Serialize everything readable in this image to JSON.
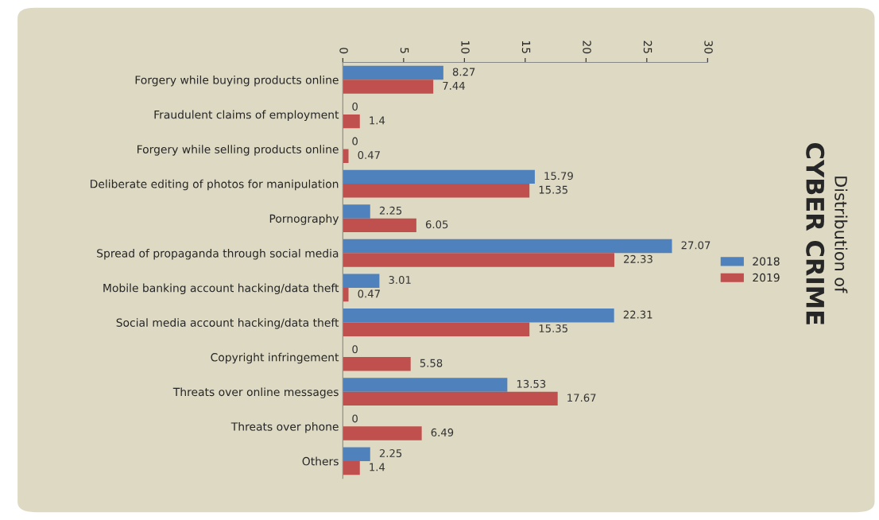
{
  "chart_data": {
    "type": "bar",
    "orientation": "horizontal",
    "title": "Distribution of",
    "subtitle": "CYBER CRIME",
    "categories": [
      "Forgery while buying products online",
      "Fraudulent claims of employment",
      "Forgery while selling products online",
      "Deliberate editing of photos for manipulation",
      "Pornography",
      "Spread of propaganda through social media",
      "Mobile banking account hacking/data theft",
      "Social media account hacking/data theft",
      "Copyright infringement",
      "Threats over online messages",
      "Threats over phone",
      "Others"
    ],
    "series": [
      {
        "name": "2018",
        "color": "#4f81bd",
        "values": [
          8.27,
          0,
          0,
          15.79,
          2.25,
          27.07,
          3.01,
          22.31,
          0,
          13.53,
          0,
          2.25
        ]
      },
      {
        "name": "2019",
        "color": "#c0504d",
        "values": [
          7.44,
          1.4,
          0.47,
          15.35,
          6.05,
          22.33,
          0.47,
          15.35,
          5.58,
          17.67,
          6.49,
          1.4
        ]
      }
    ],
    "xlim": [
      0,
      30
    ],
    "xticks": [
      0,
      5,
      10,
      15,
      20,
      25,
      30
    ],
    "data_labels": true,
    "grid": false,
    "legend": "right"
  }
}
